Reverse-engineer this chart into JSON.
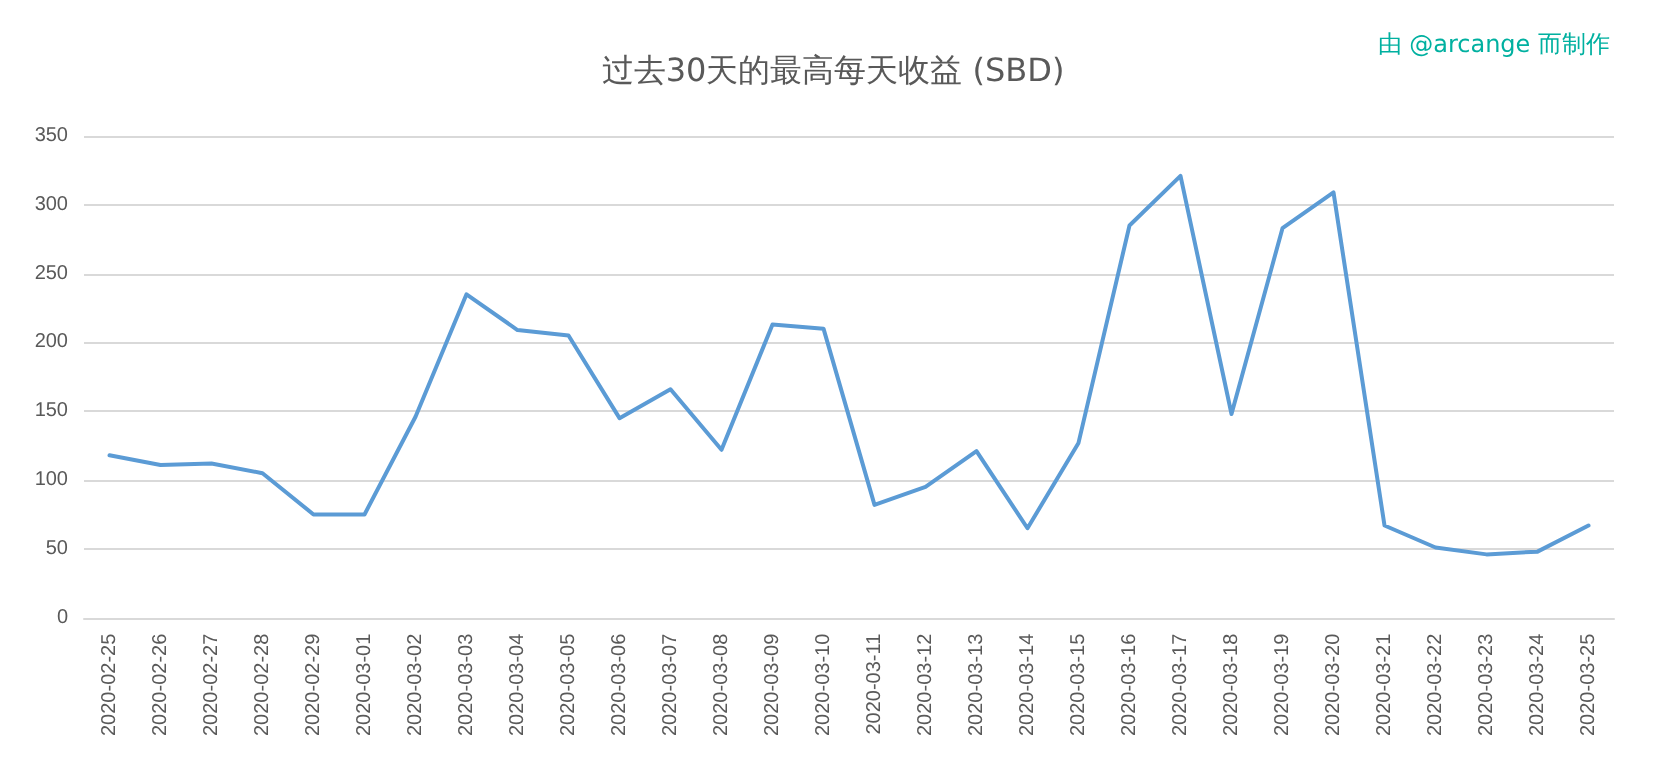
{
  "chart_data": {
    "type": "line",
    "title": "过去30天的最高每天收益 (SBD)",
    "annotations": [
      "由 @arcange 而制作"
    ],
    "categories": [
      "2020-02-25",
      "2020-02-26",
      "2020-02-27",
      "2020-02-28",
      "2020-02-29",
      "2020-03-01",
      "2020-03-02",
      "2020-03-03",
      "2020-03-04",
      "2020-03-05",
      "2020-03-06",
      "2020-03-07",
      "2020-03-08",
      "2020-03-09",
      "2020-03-10",
      "2020-03-11",
      "2020-03-12",
      "2020-03-13",
      "2020-03-14",
      "2020-03-15",
      "2020-03-16",
      "2020-03-17",
      "2020-03-18",
      "2020-03-19",
      "2020-03-20",
      "2020-03-21",
      "2020-03-22",
      "2020-03-23",
      "2020-03-24",
      "2020-03-25"
    ],
    "series": [
      {
        "color": "#5b9bd5",
        "values": [
          118,
          111,
          112,
          105,
          75,
          75,
          146,
          235,
          209,
          205,
          145,
          166,
          122,
          213,
          210,
          82,
          95,
          121,
          65,
          127,
          285,
          321,
          148,
          283,
          309,
          67,
          51,
          46,
          48,
          67
        ]
      }
    ],
    "ylim": [
      0,
      350
    ],
    "yticks": [
      0,
      50,
      100,
      150,
      200,
      250,
      300,
      350
    ],
    "grid": "y",
    "marker": "none",
    "line_style": "solid"
  }
}
